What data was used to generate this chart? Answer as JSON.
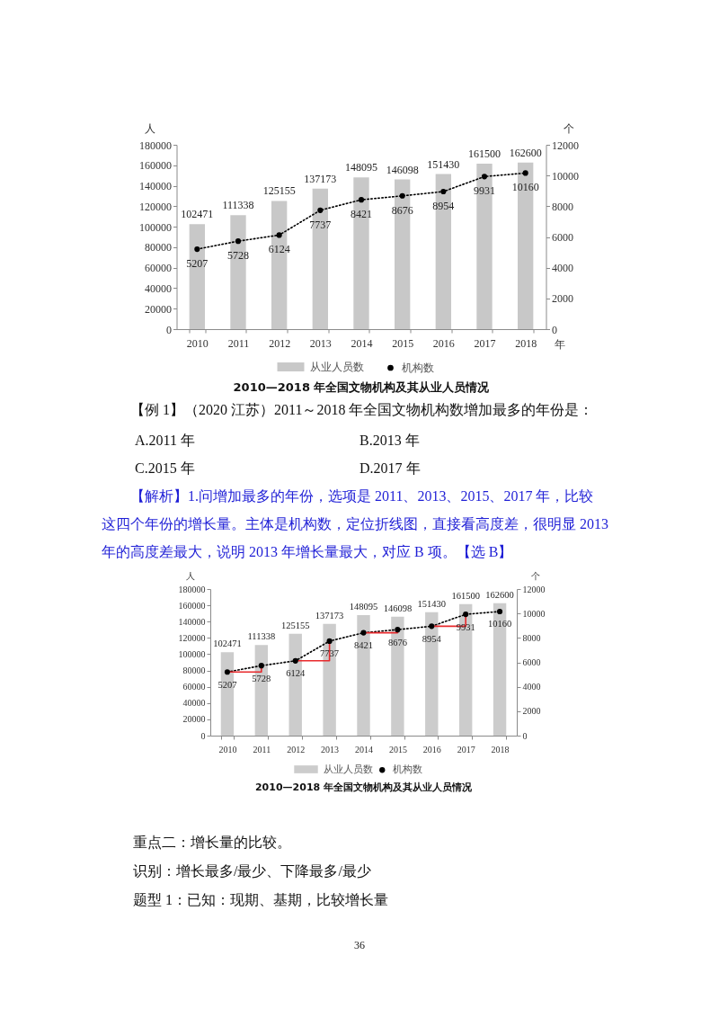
{
  "chart_data": [
    {
      "type": "bar",
      "title": "2010—2018 年全国文物机构及其从业人员情况",
      "xlabel": "年",
      "ylabel": "人",
      "y2label": "个",
      "categories": [
        "2010",
        "2011",
        "2012",
        "2013",
        "2014",
        "2015",
        "2016",
        "2017",
        "2018"
      ],
      "series": [
        {
          "name": "从业人员数",
          "color": "#c8c8c8",
          "values": [
            102471,
            111338,
            125155,
            137173,
            148095,
            146098,
            151430,
            161500,
            162600
          ]
        },
        {
          "name": "机构数",
          "type": "line",
          "axis": "y2",
          "color": "#000000",
          "marker": "circle",
          "line_style": "dotted",
          "values": [
            5207,
            5728,
            6124,
            7737,
            8421,
            8676,
            8954,
            9931,
            10160
          ]
        }
      ],
      "ylim": [
        0,
        180000
      ],
      "yticks": [
        0,
        20000,
        40000,
        60000,
        80000,
        100000,
        120000,
        140000,
        160000,
        180000
      ],
      "y2lim": [
        0,
        12000
      ],
      "y2ticks": [
        0,
        2000,
        4000,
        6000,
        8000,
        10000,
        12000
      ],
      "data_labels": true,
      "legend": "bottom",
      "annotations": [
        "【例 1】（2020 江苏）2011～2018 年全国文物机构数增加最多的年份是：",
        "A.2011 年",
        "B.2013 年",
        "C.2015 年",
        "D.2017 年",
        "【解析】1.问增加最多的年份，选项是 2011、2013、2015、2017 年，比较",
        "这四个年份的增长量。主体是机构数，定位折线图，直接看高度差，很明显 2013",
        "年的高度差最大，说明 2013 年增长量最大，对应 B 项。【选 B】"
      ]
    },
    {
      "type": "bar",
      "title": "2010—2018 年全国文物机构及其从业人员情况",
      "ylabel": "人",
      "y2label": "个",
      "categories": [
        "2010",
        "2011",
        "2012",
        "2013",
        "2014",
        "2015",
        "2016",
        "2017",
        "2018"
      ],
      "series": [
        {
          "name": "从业人员数",
          "color": "#cccccc",
          "values": [
            102471,
            111338,
            125155,
            137173,
            148095,
            146098,
            151430,
            161500,
            162600
          ]
        },
        {
          "name": "机构数",
          "type": "line",
          "axis": "y2",
          "color": "#000000",
          "marker": "circle",
          "line_style": "dotted",
          "values": [
            5207,
            5728,
            6124,
            7737,
            8421,
            8676,
            8954,
            9931,
            10160
          ]
        },
        {
          "type": "step",
          "axis": "y2",
          "color": "#e8292c",
          "data_labels": false,
          "values": [
            5207,
            5728,
            null,
            null,
            null,
            null,
            null,
            null,
            null
          ]
        },
        {
          "type": "step",
          "axis": "y2",
          "color": "#e8292c",
          "data_labels": false,
          "values": [
            null,
            null,
            6124,
            7737,
            null,
            null,
            null,
            null,
            null
          ]
        },
        {
          "type": "step",
          "axis": "y2",
          "color": "#e8292c",
          "data_labels": false,
          "values": [
            null,
            null,
            null,
            null,
            8421,
            8676,
            null,
            null,
            null
          ]
        },
        {
          "type": "step",
          "axis": "y2",
          "color": "#e8292c",
          "data_labels": false,
          "values": [
            null,
            null,
            null,
            null,
            null,
            null,
            8954,
            9931,
            null
          ]
        }
      ],
      "ylim": [
        0,
        180000
      ],
      "yticks": [
        0,
        20000,
        40000,
        60000,
        80000,
        100000,
        120000,
        140000,
        160000,
        180000
      ],
      "y2lim": [
        0,
        12000
      ],
      "y2ticks": [
        0,
        2000,
        4000,
        6000,
        8000,
        10000,
        12000
      ],
      "data_labels": true,
      "legend": "bottom",
      "annotations": [
        "重点二：增长量的比较。",
        "识别：增长最多/最少、下降最多/最少",
        "题型 1：已知：现期、基期，比较增长量",
        "36"
      ]
    }
  ]
}
